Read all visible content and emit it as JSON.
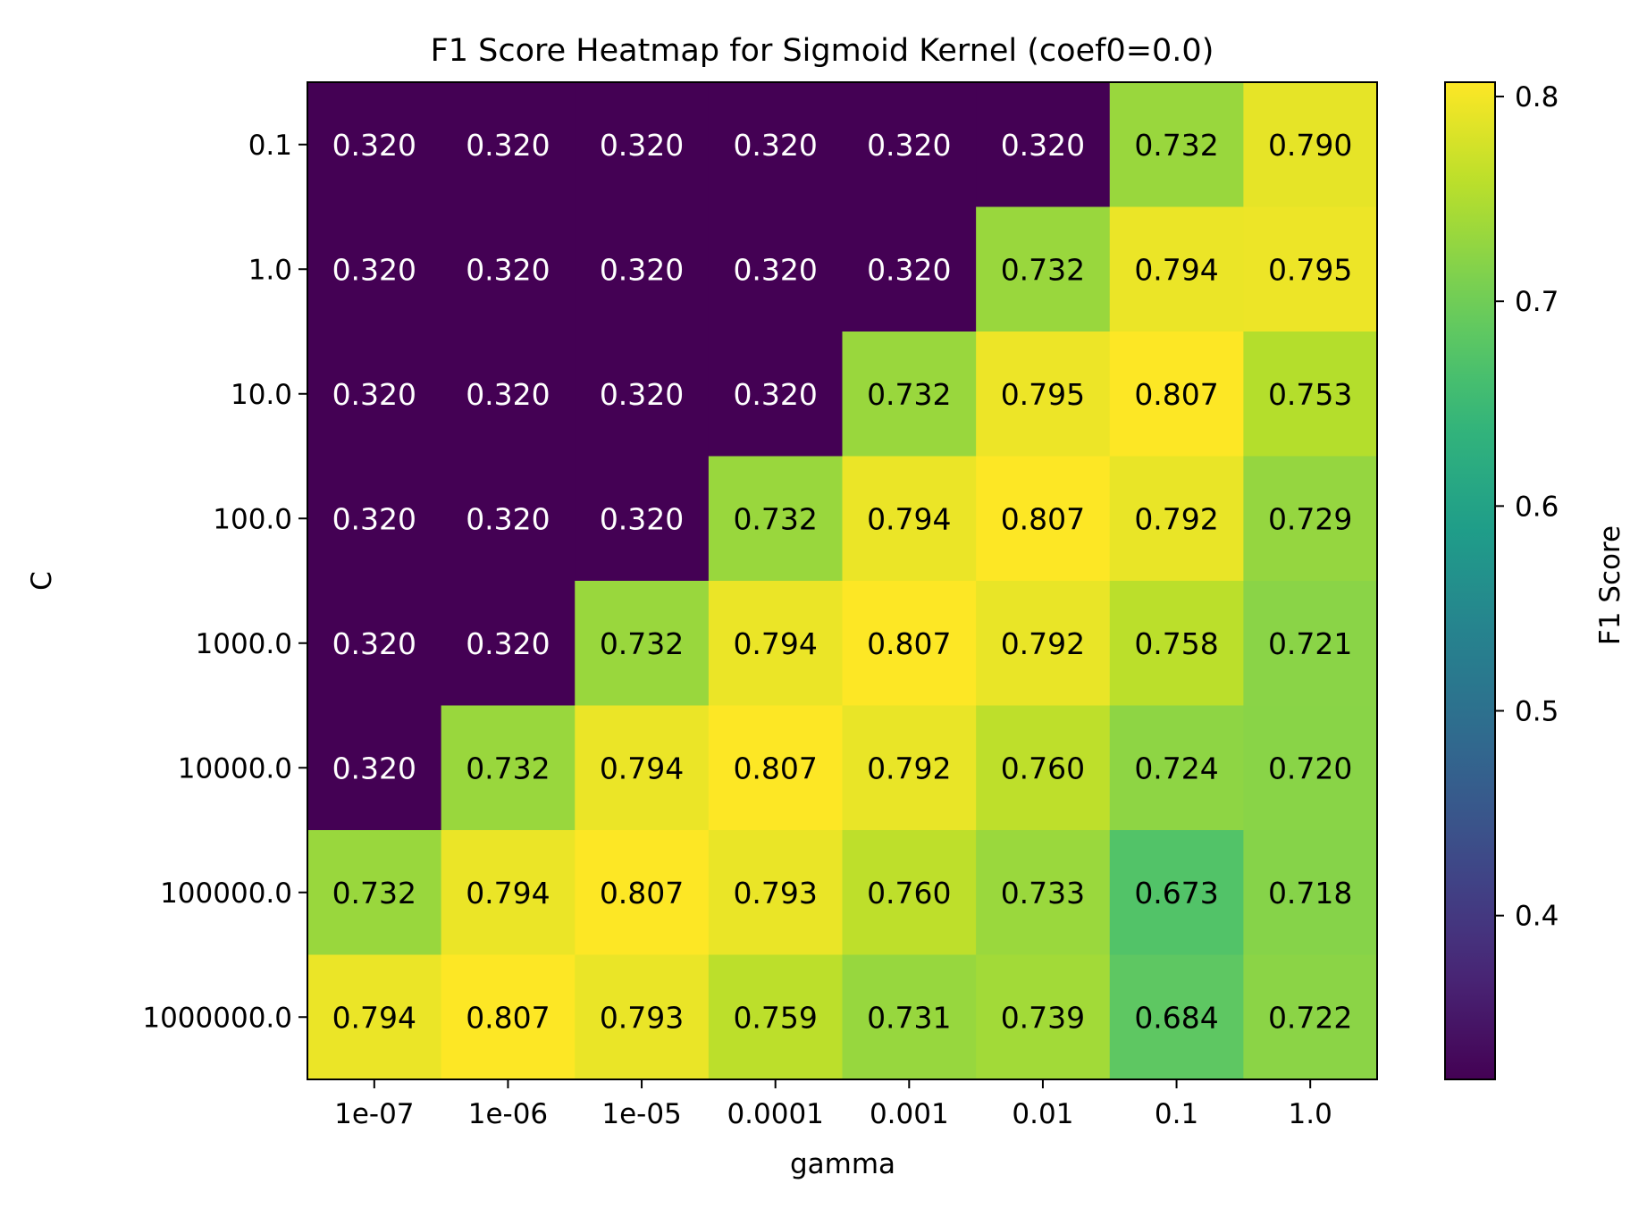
{
  "chart_data": {
    "type": "heatmap",
    "title": "F1 Score Heatmap for Sigmoid Kernel (coef0=0.0)",
    "xlabel": "gamma",
    "ylabel": "C",
    "x_categories": [
      "1e-07",
      "1e-06",
      "1e-05",
      "0.0001",
      "0.001",
      "0.01",
      "0.1",
      "1.0"
    ],
    "y_categories": [
      "0.1",
      "1.0",
      "10.0",
      "100.0",
      "1000.0",
      "10000.0",
      "100000.0",
      "1000000.0"
    ],
    "values": [
      [
        0.32,
        0.32,
        0.32,
        0.32,
        0.32,
        0.32,
        0.732,
        0.79
      ],
      [
        0.32,
        0.32,
        0.32,
        0.32,
        0.32,
        0.732,
        0.794,
        0.795
      ],
      [
        0.32,
        0.32,
        0.32,
        0.32,
        0.732,
        0.795,
        0.807,
        0.753
      ],
      [
        0.32,
        0.32,
        0.32,
        0.732,
        0.794,
        0.807,
        0.792,
        0.729
      ],
      [
        0.32,
        0.32,
        0.732,
        0.794,
        0.807,
        0.792,
        0.758,
        0.721
      ],
      [
        0.32,
        0.732,
        0.794,
        0.807,
        0.792,
        0.76,
        0.724,
        0.72
      ],
      [
        0.732,
        0.794,
        0.807,
        0.793,
        0.76,
        0.733,
        0.673,
        0.718
      ],
      [
        0.794,
        0.807,
        0.793,
        0.759,
        0.731,
        0.739,
        0.684,
        0.722
      ]
    ],
    "value_labels": [
      [
        "0.320",
        "0.320",
        "0.320",
        "0.320",
        "0.320",
        "0.320",
        "0.732",
        "0.790"
      ],
      [
        "0.320",
        "0.320",
        "0.320",
        "0.320",
        "0.320",
        "0.732",
        "0.794",
        "0.795"
      ],
      [
        "0.320",
        "0.320",
        "0.320",
        "0.320",
        "0.732",
        "0.795",
        "0.807",
        "0.753"
      ],
      [
        "0.320",
        "0.320",
        "0.320",
        "0.732",
        "0.794",
        "0.807",
        "0.792",
        "0.729"
      ],
      [
        "0.320",
        "0.320",
        "0.732",
        "0.794",
        "0.807",
        "0.792",
        "0.758",
        "0.721"
      ],
      [
        "0.320",
        "0.732",
        "0.794",
        "0.807",
        "0.792",
        "0.760",
        "0.724",
        "0.720"
      ],
      [
        "0.732",
        "0.794",
        "0.807",
        "0.793",
        "0.760",
        "0.733",
        "0.673",
        "0.718"
      ],
      [
        "0.794",
        "0.807",
        "0.793",
        "0.759",
        "0.731",
        "0.739",
        "0.684",
        "0.722"
      ]
    ],
    "colormap": "viridis",
    "vmin": 0.32,
    "vmax": 0.807,
    "colorbar": {
      "label": "F1 Score",
      "ticks": [
        0.4,
        0.5,
        0.6,
        0.7,
        0.8
      ],
      "tick_labels": [
        "0.4",
        "0.5",
        "0.6",
        "0.7",
        "0.8"
      ]
    },
    "grid": false,
    "legend": "none"
  }
}
